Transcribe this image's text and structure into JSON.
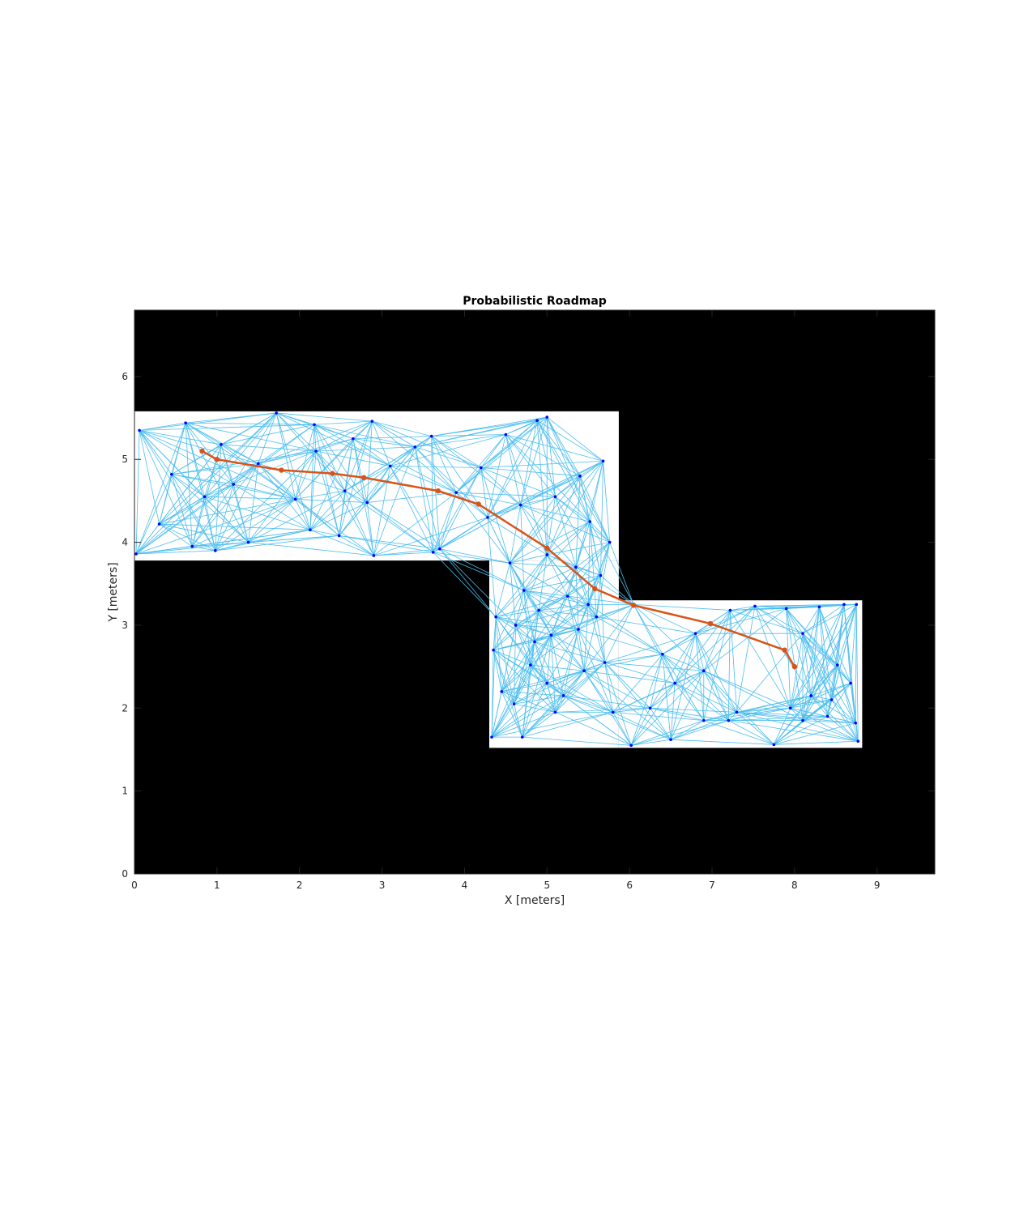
{
  "chart_data": {
    "type": "scatter",
    "title": "Probabilistic Roadmap",
    "xlabel": "X [meters]",
    "ylabel": "Y [meters]",
    "xlim": [
      0,
      9.7
    ],
    "ylim": [
      0,
      6.8
    ],
    "xticks": [
      "0",
      "1",
      "2",
      "3",
      "4",
      "5",
      "6",
      "7",
      "8",
      "9"
    ],
    "yticks": [
      "0",
      "1",
      "2",
      "3",
      "4",
      "5",
      "6"
    ],
    "grid": false,
    "map": {
      "occupied_color": "#000000",
      "free_color": "#ffffff",
      "free_regions": [
        {
          "x": [
            0.0,
            5.87
          ],
          "y": [
            3.78,
            5.58
          ]
        },
        {
          "x": [
            4.3,
            5.87
          ],
          "y": [
            1.52,
            3.78
          ]
        },
        {
          "x": [
            5.87,
            8.82
          ],
          "y": [
            1.52,
            3.3
          ]
        }
      ]
    },
    "roadmap": {
      "edge_color": "#4dbeee",
      "node_color": "#0000ff",
      "nodes": [
        [
          0.06,
          5.35
        ],
        [
          0.62,
          5.44
        ],
        [
          1.72,
          5.56
        ],
        [
          2.18,
          5.42
        ],
        [
          2.88,
          5.46
        ],
        [
          3.6,
          5.28
        ],
        [
          4.5,
          5.3
        ],
        [
          4.88,
          5.47
        ],
        [
          5.0,
          5.51
        ],
        [
          5.68,
          4.98
        ],
        [
          0.3,
          4.22
        ],
        [
          0.02,
          3.86
        ],
        [
          0.7,
          3.95
        ],
        [
          0.98,
          3.9
        ],
        [
          1.38,
          4.0
        ],
        [
          2.13,
          4.15
        ],
        [
          2.48,
          4.08
        ],
        [
          2.9,
          3.84
        ],
        [
          3.62,
          3.88
        ],
        [
          3.7,
          3.92
        ],
        [
          0.85,
          4.55
        ],
        [
          1.2,
          4.7
        ],
        [
          1.5,
          4.95
        ],
        [
          1.95,
          4.52
        ],
        [
          2.2,
          5.1
        ],
        [
          2.55,
          4.62
        ],
        [
          2.82,
          4.48
        ],
        [
          3.1,
          4.92
        ],
        [
          3.4,
          5.15
        ],
        [
          3.9,
          4.6
        ],
        [
          4.2,
          4.9
        ],
        [
          4.68,
          4.45
        ],
        [
          5.1,
          4.55
        ],
        [
          5.4,
          4.8
        ],
        [
          5.52,
          4.25
        ],
        [
          5.76,
          4.0
        ],
        [
          4.28,
          4.3
        ],
        [
          0.45,
          4.82
        ],
        [
          1.05,
          5.18
        ],
        [
          2.65,
          5.25
        ],
        [
          4.62,
          3.0
        ],
        [
          4.72,
          3.42
        ],
        [
          4.9,
          3.18
        ],
        [
          5.05,
          2.88
        ],
        [
          5.25,
          3.35
        ],
        [
          5.38,
          2.95
        ],
        [
          5.6,
          3.1
        ],
        [
          4.35,
          2.7
        ],
        [
          4.45,
          2.2
        ],
        [
          4.6,
          2.05
        ],
        [
          4.8,
          2.52
        ],
        [
          5.0,
          2.3
        ],
        [
          5.2,
          2.15
        ],
        [
          5.45,
          2.45
        ],
        [
          5.7,
          2.55
        ],
        [
          4.33,
          1.65
        ],
        [
          4.7,
          1.65
        ],
        [
          5.1,
          1.95
        ],
        [
          5.8,
          1.95
        ],
        [
          4.55,
          3.75
        ],
        [
          5.0,
          3.85
        ],
        [
          5.35,
          3.7
        ],
        [
          5.65,
          3.6
        ],
        [
          4.38,
          3.1
        ],
        [
          4.85,
          2.8
        ],
        [
          5.5,
          3.25
        ],
        [
          6.05,
          3.25
        ],
        [
          6.4,
          2.65
        ],
        [
          6.55,
          2.3
        ],
        [
          6.9,
          2.45
        ],
        [
          7.22,
          3.18
        ],
        [
          7.52,
          3.23
        ],
        [
          7.3,
          1.95
        ],
        [
          7.75,
          1.56
        ],
        [
          7.95,
          2.0
        ],
        [
          8.1,
          1.85
        ],
        [
          6.02,
          1.55
        ],
        [
          6.5,
          1.62
        ],
        [
          6.9,
          1.85
        ],
        [
          8.6,
          3.25
        ],
        [
          8.75,
          3.25
        ],
        [
          8.3,
          3.22
        ],
        [
          7.9,
          3.2
        ],
        [
          8.52,
          2.52
        ],
        [
          8.68,
          2.3
        ],
        [
          8.74,
          1.82
        ],
        [
          8.77,
          1.6
        ],
        [
          8.4,
          1.9
        ],
        [
          8.2,
          2.15
        ],
        [
          7.2,
          1.85
        ],
        [
          6.25,
          2.0
        ],
        [
          8.1,
          2.9
        ],
        [
          8.45,
          2.1
        ],
        [
          6.8,
          2.9
        ]
      ],
      "edges": "k-nearest connections between roadmap nodes"
    },
    "path": {
      "color": "#d95319",
      "points": [
        [
          0.82,
          5.1
        ],
        [
          1.0,
          5.0
        ],
        [
          1.78,
          4.87
        ],
        [
          2.4,
          4.83
        ],
        [
          2.78,
          4.78
        ],
        [
          3.68,
          4.62
        ],
        [
          4.17,
          4.46
        ],
        [
          5.0,
          3.93
        ],
        [
          5.58,
          3.44
        ],
        [
          6.05,
          3.24
        ],
        [
          6.98,
          3.02
        ],
        [
          7.88,
          2.7
        ],
        [
          8.0,
          2.5
        ]
      ]
    }
  }
}
